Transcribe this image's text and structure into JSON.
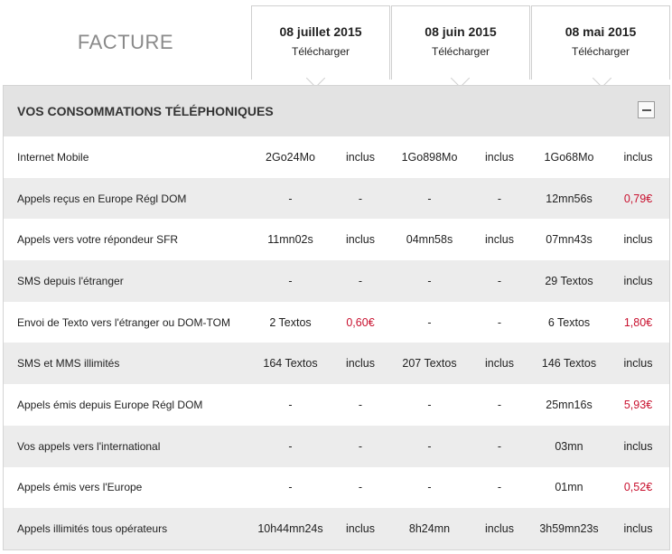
{
  "header": {
    "title": "FACTURE",
    "bills": [
      {
        "date": "08 juillet 2015",
        "download": "Télécharger"
      },
      {
        "date": "08 juin 2015",
        "download": "Télécharger"
      },
      {
        "date": "08 mai 2015",
        "download": "Télécharger"
      }
    ]
  },
  "section": {
    "title": "VOS CONSOMMATIONS TÉLÉPHONIQUES",
    "collapse_symbol": "minus-icon"
  },
  "rows": [
    {
      "label": "Internet Mobile",
      "cells": [
        [
          "2Go24Mo",
          "inclus"
        ],
        [
          "1Go898Mo",
          "inclus"
        ],
        [
          "1Go68Mo",
          "inclus"
        ]
      ]
    },
    {
      "label": "Appels reçus en Europe Régl DOM",
      "cells": [
        [
          "-",
          "-"
        ],
        [
          "-",
          "-"
        ],
        [
          "12mn56s",
          "0,79€"
        ]
      ]
    },
    {
      "label": "Appels vers votre répondeur SFR",
      "cells": [
        [
          "11mn02s",
          "inclus"
        ],
        [
          "04mn58s",
          "inclus"
        ],
        [
          "07mn43s",
          "inclus"
        ]
      ]
    },
    {
      "label": "SMS depuis l'étranger",
      "cells": [
        [
          "-",
          "-"
        ],
        [
          "-",
          "-"
        ],
        [
          "29 Textos",
          "inclus"
        ]
      ]
    },
    {
      "label": "Envoi de Texto vers l'étranger ou DOM-TOM",
      "cells": [
        [
          "2 Textos",
          "0,60€"
        ],
        [
          "-",
          "-"
        ],
        [
          "6 Textos",
          "1,80€"
        ]
      ]
    },
    {
      "label": "SMS et MMS illimités",
      "cells": [
        [
          "164 Textos",
          "inclus"
        ],
        [
          "207 Textos",
          "inclus"
        ],
        [
          "146 Textos",
          "inclus"
        ]
      ]
    },
    {
      "label": "Appels émis depuis Europe Régl DOM",
      "cells": [
        [
          "-",
          "-"
        ],
        [
          "-",
          "-"
        ],
        [
          "25mn16s",
          "5,93€"
        ]
      ]
    },
    {
      "label": "Vos appels vers l'international",
      "cells": [
        [
          "-",
          "-"
        ],
        [
          "-",
          "-"
        ],
        [
          "03mn",
          "inclus"
        ]
      ]
    },
    {
      "label": "Appels émis vers l'Europe",
      "cells": [
        [
          "-",
          "-"
        ],
        [
          "-",
          "-"
        ],
        [
          "01mn",
          "0,52€"
        ]
      ]
    },
    {
      "label": "Appels illimités tous opérateurs",
      "cells": [
        [
          "10h44mn24s",
          "inclus"
        ],
        [
          "8h24mn",
          "inclus"
        ],
        [
          "3h59mn23s",
          "inclus"
        ]
      ]
    }
  ],
  "colors": {
    "charged": "#c8102e",
    "header_bg": "#e3e3e3",
    "stripe": "#ececec"
  }
}
